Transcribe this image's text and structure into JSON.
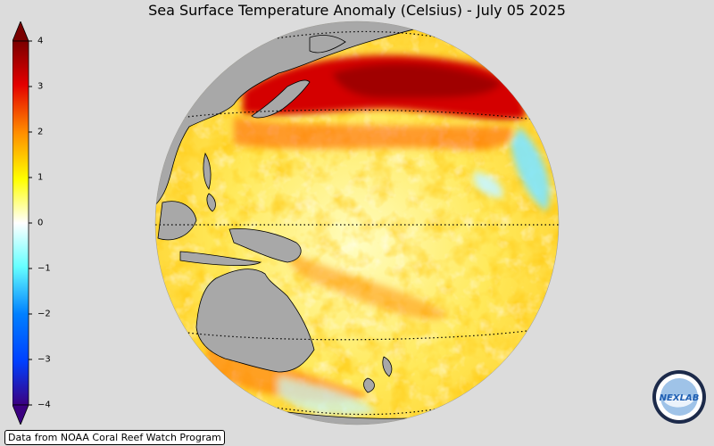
{
  "title": "Sea Surface Temperature Anomaly (Celsius) - July 05 2025",
  "colorbar": {
    "min": -4,
    "max": 4,
    "ticks": [
      "4",
      "3",
      "2",
      "1",
      "0",
      "−1",
      "−2",
      "−3",
      "−4"
    ],
    "colors": {
      "max": "#7a0000",
      "hot": "#e30000",
      "warm": "#ff8c00",
      "mild": "#ffff00",
      "zero": "#ffffff",
      "cool": "#66ffff",
      "cold": "#0080ff",
      "min": "#3b0080"
    }
  },
  "map": {
    "projection": "orthographic",
    "land_color": "#a8a8a8",
    "graticule": "dotted"
  },
  "credit": "Data from NOAA Coral Reef Watch Program",
  "logo": {
    "text": "NEXLAB"
  }
}
